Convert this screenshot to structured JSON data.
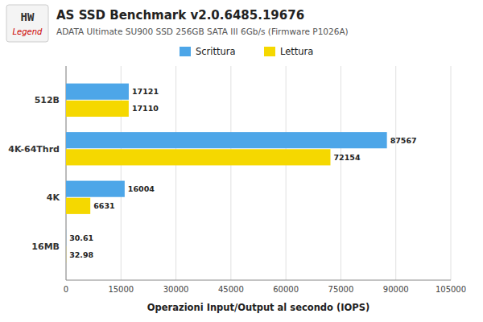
{
  "chart_data": {
    "type": "bar",
    "orientation": "horizontal",
    "title": "AS SSD Benchmark v2.0.6485.19676",
    "subtitle": "ADATA Ultimate SU900 SSD 256GB SATA III 6Gb/s (Firmware P1026A)",
    "annotations": [
      "HW",
      "Legend"
    ],
    "categories": [
      "16MB",
      "4K",
      "4K-64Thrd",
      "512B"
    ],
    "series": [
      {
        "name": "Scrittura",
        "color": "#4da6e8",
        "values": [
          30.61,
          16004,
          87567,
          17121
        ]
      },
      {
        "name": "Lettura",
        "color": "#f5d800",
        "values": [
          32.98,
          6631,
          72154,
          17110
        ]
      }
    ],
    "xlabel": "Operazioni Input/Output al secondo (IOPS)",
    "xlim": [
      0,
      105000
    ],
    "xticks": [
      0,
      15000,
      30000,
      45000,
      60000,
      75000,
      90000,
      105000
    ],
    "grid": true,
    "legend": "top",
    "data_labels": true
  }
}
